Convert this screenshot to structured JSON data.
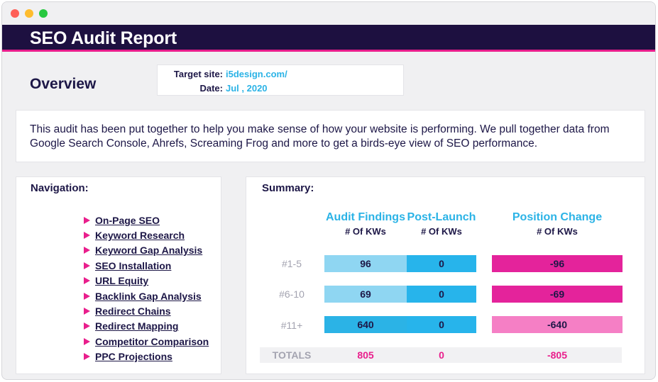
{
  "window": {
    "controls": [
      "close",
      "minimize",
      "maximize"
    ]
  },
  "header": {
    "title": "SEO Audit Report"
  },
  "overview": {
    "title": "Overview",
    "target_site_label": "Target site:",
    "target_site_value": "i5design.com/",
    "date_label": "Date:",
    "date_value": "Jul , 2020"
  },
  "intro": {
    "text": "This audit has been put together to help you make sense of how your website is performing. We pull together data from Google Search Console, Ahrefs, Screaming Frog and more to get a birds-eye view of SEO performance."
  },
  "navigation": {
    "title": "Navigation:",
    "items": [
      {
        "label": "On-Page SEO"
      },
      {
        "label": "Keyword Research"
      },
      {
        "label": "Keyword Gap Analysis"
      },
      {
        "label": "SEO Installation"
      },
      {
        "label": "URL Equity"
      },
      {
        "label": "Backlink Gap Analysis"
      },
      {
        "label": "Redirect Chains"
      },
      {
        "label": "Redirect Mapping"
      },
      {
        "label": "Competitor Comparison"
      },
      {
        "label": "PPC Projections"
      }
    ]
  },
  "summary": {
    "title": "Summary:",
    "columns": [
      {
        "heading": "Audit Findings",
        "sub": "# Of KWs"
      },
      {
        "heading": "Post-Launch",
        "sub": "# Of KWs"
      },
      {
        "heading": "Position Change",
        "sub": "# Of KWs"
      }
    ],
    "rows": [
      {
        "label": "#1-5",
        "audit": "96",
        "post": "0",
        "change": "-96"
      },
      {
        "label": "#6-10",
        "audit": "69",
        "post": "0",
        "change": "-69"
      },
      {
        "label": "#11+",
        "audit": "640",
        "post": "0",
        "change": "-640"
      }
    ],
    "totals": {
      "label": "TOTALS",
      "audit": "805",
      "post": "0",
      "change": "-805"
    }
  },
  "colors": {
    "header_bg": "#1d1040",
    "accent_pink": "#e91e8c",
    "accent_blue": "#2bb3e6",
    "audit_light": "#8fd6f2",
    "audit_strong": "#2bb3e6",
    "post": "#27b4eb",
    "change_strong": "#e4239b",
    "change_light": "#f57fc5"
  }
}
